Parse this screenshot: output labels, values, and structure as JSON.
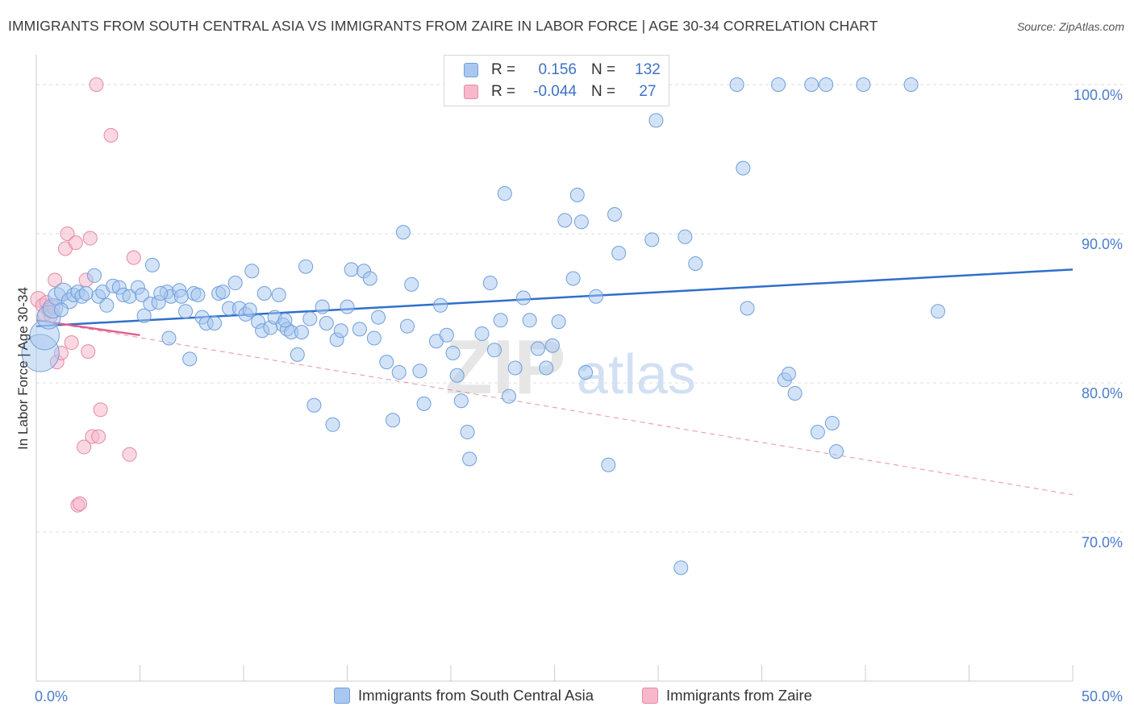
{
  "header": {
    "title": "IMMIGRANTS FROM SOUTH CENTRAL ASIA VS IMMIGRANTS FROM ZAIRE IN LABOR FORCE | AGE 30-34 CORRELATION CHART",
    "source": "Source: ZipAtlas.com"
  },
  "legend": {
    "r_label": "R =",
    "n_label": "N =",
    "rows": [
      {
        "r": "0.156",
        "n": "132"
      },
      {
        "r": "-0.044",
        "n": "27"
      }
    ]
  },
  "bottom_legend": {
    "series1": "Immigrants from South Central Asia",
    "series2": "Immigrants from Zaire"
  },
  "watermark": {
    "zip": "ZIP",
    "atlas": "atlas"
  },
  "colors": {
    "blue_fill": "#a8c8ef",
    "blue_stroke": "#6f9fdc",
    "blue_line": "#2f6fcc",
    "pink_fill": "#f6b8ca",
    "pink_stroke": "#e58aa6",
    "pink_line": "#e0608c",
    "tick_text": "#4a7cc9",
    "grid": "#dcdcdc"
  },
  "chart_data": {
    "type": "scatter",
    "title": "IMMIGRANTS FROM SOUTH CENTRAL ASIA VS IMMIGRANTS FROM ZAIRE IN LABOR FORCE | AGE 30-34 CORRELATION CHART",
    "xlabel": "",
    "ylabel": "In Labor Force | Age 30-34",
    "xlim": [
      0,
      50
    ],
    "ylim": [
      60,
      102
    ],
    "x_tick_labels": [
      "0.0%",
      "50.0%"
    ],
    "y_ticks": [
      70,
      80,
      90,
      100
    ],
    "y_tick_labels": [
      "70.0%",
      "80.0%",
      "90.0%",
      "100.0%"
    ],
    "grid": true,
    "legend_position": "top-center",
    "series": [
      {
        "name": "Immigrants from South Central Asia",
        "color": "#a8c8ef",
        "r": 0.156,
        "n": 132,
        "trend": {
          "x": [
            0,
            50
          ],
          "y": [
            83.8,
            87.6
          ]
        },
        "points": [
          [
            0.2,
            82.0,
            1.9
          ],
          [
            0.4,
            83.2,
            1.5
          ],
          [
            0.6,
            84.4,
            1.2
          ],
          [
            0.8,
            85.0,
            1.0
          ],
          [
            1.0,
            85.8,
            0.9
          ],
          [
            1.3,
            86.1,
            0.9
          ],
          [
            1.6,
            85.5,
            0.8
          ],
          [
            1.8,
            85.9,
            0.7
          ],
          [
            2.0,
            86.1,
            0.7
          ],
          [
            2.2,
            85.8,
            0.7
          ],
          [
            2.8,
            87.2,
            0.7
          ],
          [
            3.0,
            85.8,
            0.7
          ],
          [
            3.2,
            86.1,
            0.7
          ],
          [
            3.4,
            85.2,
            0.7
          ],
          [
            3.7,
            86.5,
            0.7
          ],
          [
            4.0,
            86.4,
            0.7
          ],
          [
            4.2,
            85.9,
            0.7
          ],
          [
            4.5,
            85.8,
            0.7
          ],
          [
            4.9,
            86.4,
            0.7
          ],
          [
            5.1,
            85.9,
            0.7
          ],
          [
            5.2,
            84.5,
            0.7
          ],
          [
            5.5,
            85.3,
            0.7
          ],
          [
            5.6,
            87.9,
            0.7
          ],
          [
            5.9,
            85.4,
            0.7
          ],
          [
            6.3,
            86.1,
            0.7
          ],
          [
            6.4,
            83.0,
            0.7
          ],
          [
            6.5,
            85.8,
            0.7
          ],
          [
            6.9,
            86.2,
            0.7
          ],
          [
            7.0,
            85.8,
            0.7
          ],
          [
            7.2,
            84.8,
            0.7
          ],
          [
            7.4,
            81.6,
            0.7
          ],
          [
            7.6,
            86.0,
            0.7
          ],
          [
            7.8,
            85.9,
            0.7
          ],
          [
            8.0,
            84.4,
            0.7
          ],
          [
            8.2,
            84.0,
            0.7
          ],
          [
            8.6,
            84.0,
            0.7
          ],
          [
            8.8,
            86.0,
            0.7
          ],
          [
            9.0,
            86.1,
            0.7
          ],
          [
            9.3,
            85.0,
            0.7
          ],
          [
            9.6,
            86.7,
            0.7
          ],
          [
            9.8,
            85.0,
            0.7
          ],
          [
            10.1,
            84.6,
            0.7
          ],
          [
            10.3,
            84.9,
            0.7
          ],
          [
            10.4,
            87.5,
            0.7
          ],
          [
            10.7,
            84.1,
            0.7
          ],
          [
            10.9,
            83.5,
            0.7
          ],
          [
            11.0,
            86.0,
            0.7
          ],
          [
            11.3,
            83.7,
            0.7
          ],
          [
            11.5,
            84.4,
            0.7
          ],
          [
            11.7,
            85.9,
            0.7
          ],
          [
            11.9,
            83.9,
            0.7
          ],
          [
            12.1,
            83.6,
            0.7
          ],
          [
            12.3,
            83.4,
            0.7
          ],
          [
            12.6,
            81.9,
            0.7
          ],
          [
            12.8,
            83.4,
            0.7
          ],
          [
            13.0,
            87.8,
            0.7
          ],
          [
            13.2,
            84.3,
            0.7
          ],
          [
            13.4,
            78.5,
            0.7
          ],
          [
            13.8,
            85.1,
            0.7
          ],
          [
            14.0,
            84.0,
            0.7
          ],
          [
            14.3,
            77.2,
            0.7
          ],
          [
            14.5,
            82.9,
            0.7
          ],
          [
            14.7,
            83.5,
            0.7
          ],
          [
            15.0,
            85.1,
            0.7
          ],
          [
            15.2,
            87.6,
            0.7
          ],
          [
            15.6,
            83.6,
            0.7
          ],
          [
            15.8,
            87.5,
            0.7
          ],
          [
            16.1,
            87.0,
            0.7
          ],
          [
            16.3,
            83.0,
            0.7
          ],
          [
            16.5,
            84.4,
            0.7
          ],
          [
            16.9,
            81.4,
            0.7
          ],
          [
            17.2,
            77.5,
            0.7
          ],
          [
            17.5,
            80.7,
            0.7
          ],
          [
            17.7,
            90.1,
            0.7
          ],
          [
            17.9,
            83.8,
            0.7
          ],
          [
            18.1,
            86.6,
            0.7
          ],
          [
            18.5,
            80.8,
            0.7
          ],
          [
            18.7,
            78.6,
            0.7
          ],
          [
            19.3,
            82.8,
            0.7
          ],
          [
            19.5,
            85.2,
            0.7
          ],
          [
            19.8,
            83.2,
            0.7
          ],
          [
            20.1,
            82.0,
            0.7
          ],
          [
            20.3,
            80.5,
            0.7
          ],
          [
            20.5,
            78.8,
            0.7
          ],
          [
            20.8,
            76.7,
            0.7
          ],
          [
            20.9,
            74.9,
            0.7
          ],
          [
            21.5,
            83.3,
            0.7
          ],
          [
            21.9,
            86.7,
            0.7
          ],
          [
            22.1,
            82.2,
            0.7
          ],
          [
            22.4,
            84.2,
            0.7
          ],
          [
            22.6,
            92.7,
            0.7
          ],
          [
            22.8,
            79.1,
            0.7
          ],
          [
            23.1,
            81.0,
            0.7
          ],
          [
            23.5,
            85.7,
            0.7
          ],
          [
            23.8,
            84.2,
            0.7
          ],
          [
            24.2,
            82.3,
            0.7
          ],
          [
            24.6,
            81.0,
            0.7
          ],
          [
            24.9,
            82.5,
            0.7
          ],
          [
            25.2,
            84.1,
            0.7
          ],
          [
            25.5,
            90.9,
            0.7
          ],
          [
            25.9,
            87.0,
            0.7
          ],
          [
            26.1,
            92.6,
            0.7
          ],
          [
            26.3,
            90.8,
            0.7
          ],
          [
            26.5,
            80.7,
            0.7
          ],
          [
            27.0,
            85.8,
            0.7
          ],
          [
            27.6,
            74.5,
            0.7
          ],
          [
            27.9,
            91.3,
            0.7
          ],
          [
            28.1,
            88.7,
            0.7
          ],
          [
            29.7,
            89.6,
            0.7
          ],
          [
            29.9,
            97.6,
            0.7
          ],
          [
            31.3,
            89.8,
            0.7
          ],
          [
            31.8,
            88.0,
            0.7
          ],
          [
            31.1,
            67.6,
            0.7
          ],
          [
            33.8,
            100.0,
            0.7
          ],
          [
            34.1,
            94.4,
            0.7
          ],
          [
            34.3,
            85.0,
            0.7
          ],
          [
            35.8,
            100.0,
            0.7
          ],
          [
            36.1,
            80.2,
            0.7
          ],
          [
            36.3,
            80.6,
            0.7
          ],
          [
            36.6,
            79.3,
            0.7
          ],
          [
            37.4,
            100.0,
            0.7
          ],
          [
            37.7,
            76.7,
            0.7
          ],
          [
            38.1,
            100.0,
            0.7
          ],
          [
            38.4,
            77.3,
            0.7
          ],
          [
            38.6,
            75.4,
            0.7
          ],
          [
            39.9,
            100.0,
            0.7
          ],
          [
            42.2,
            100.0,
            0.7
          ],
          [
            43.5,
            84.8,
            0.7
          ],
          [
            1.2,
            84.9,
            0.7
          ],
          [
            2.4,
            86.0,
            0.7
          ],
          [
            6.0,
            86.0,
            0.7
          ],
          [
            12.0,
            84.2,
            0.7
          ]
        ]
      },
      {
        "name": "Immigrants from Zaire",
        "color": "#f6b8ca",
        "r": -0.044,
        "n": 27,
        "trend": {
          "x": [
            0,
            5
          ],
          "y": [
            84.2,
            83.2
          ]
        },
        "trend_dashed": {
          "x": [
            0,
            50
          ],
          "y": [
            84.2,
            72.5
          ]
        },
        "points": [
          [
            0.1,
            85.6,
            0.8
          ],
          [
            0.3,
            85.2,
            0.7
          ],
          [
            0.4,
            84.6,
            0.7
          ],
          [
            0.5,
            85.4,
            0.7
          ],
          [
            0.6,
            84.9,
            0.7
          ],
          [
            0.7,
            84.5,
            0.7
          ],
          [
            0.8,
            85.1,
            0.7
          ],
          [
            0.9,
            86.9,
            0.7
          ],
          [
            1.0,
            81.4,
            0.7
          ],
          [
            1.2,
            82.0,
            0.7
          ],
          [
            1.4,
            89.0,
            0.7
          ],
          [
            1.5,
            90.0,
            0.7
          ],
          [
            1.7,
            82.7,
            0.7
          ],
          [
            1.9,
            89.4,
            0.7
          ],
          [
            2.0,
            71.8,
            0.7
          ],
          [
            2.1,
            71.9,
            0.7
          ],
          [
            2.3,
            75.7,
            0.7
          ],
          [
            2.4,
            86.9,
            0.7
          ],
          [
            2.5,
            82.1,
            0.7
          ],
          [
            2.6,
            89.7,
            0.7
          ],
          [
            2.7,
            76.4,
            0.7
          ],
          [
            2.9,
            100.0,
            0.7
          ],
          [
            3.0,
            76.4,
            0.7
          ],
          [
            3.1,
            78.2,
            0.7
          ],
          [
            3.6,
            96.6,
            0.7
          ],
          [
            4.5,
            75.2,
            0.7
          ],
          [
            4.7,
            88.4,
            0.7
          ]
        ]
      }
    ]
  }
}
